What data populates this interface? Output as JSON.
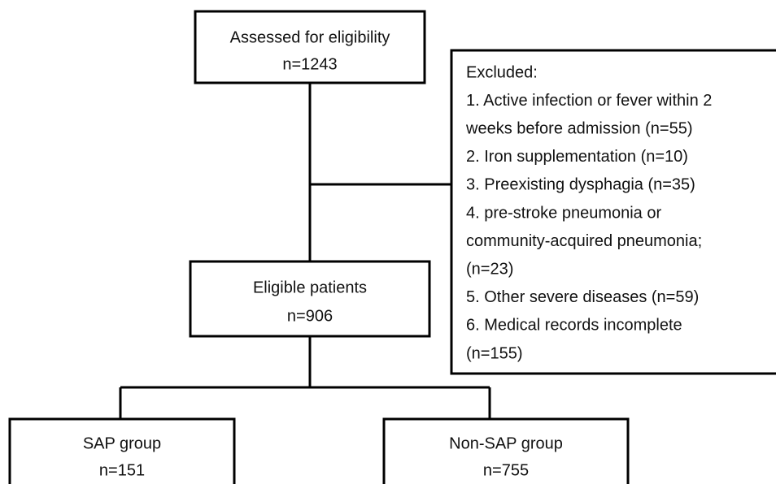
{
  "nodes": [
    {
      "lines": [
        "Assessed for eligibility",
        "n=1243"
      ]
    },
    {
      "lines": [
        "Excluded:",
        "1. Active infection or fever within 2",
        "weeks before admission (n=55)",
        "2. Iron supplementation (n=10)",
        "3. Preexisting dysphagia (n=35)",
        "4. pre-stroke pneumonia or",
        "community-acquired pneumonia;",
        "(n=23)",
        "5. Other severe diseases (n=59)",
        "6. Medical records incomplete",
        "(n=155)"
      ]
    },
    {
      "lines": [
        "Eligible patients",
        "n=906"
      ]
    },
    {
      "lines": [
        "SAP group",
        "n=151"
      ]
    },
    {
      "lines": [
        "Non-SAP group",
        "n=755"
      ]
    }
  ]
}
